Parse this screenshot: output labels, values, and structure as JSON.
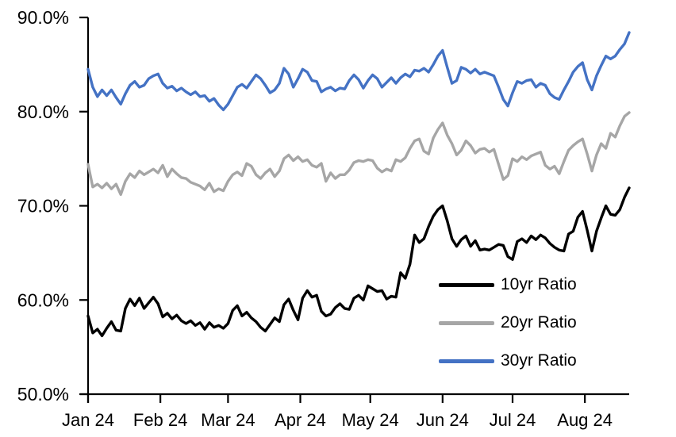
{
  "chart_data": {
    "type": "line",
    "grid": "off",
    "plot_background": "#ffffff",
    "x_axis": {
      "tick_labels": [
        "Jan 24",
        "Feb 24",
        "Mar 24",
        "Apr 24",
        "May 24",
        "Jun 24",
        "Jul 24",
        "Aug 24"
      ],
      "tick_days": [
        0,
        31,
        60,
        91,
        121,
        152,
        182,
        213
      ],
      "domain_days": [
        0,
        232
      ],
      "axis_color": "#000000"
    },
    "y_axis": {
      "tick_labels": [
        "90.0%",
        "80.0%",
        "70.0%",
        "60.0%",
        "50.0%"
      ],
      "tick_values": [
        90,
        80,
        70,
        60,
        50
      ],
      "min": 50,
      "max": 90,
      "axis_color": "#000000"
    },
    "legend": {
      "position": "inside-lower-right"
    },
    "sample_step_days": 2,
    "series": [
      {
        "name": "10yr Ratio",
        "color": "#000000",
        "values": [
          58.3,
          56.5,
          56.9,
          56.2,
          57.0,
          57.7,
          56.8,
          56.7,
          59.1,
          60.1,
          59.4,
          60.2,
          59.1,
          59.7,
          60.3,
          59.6,
          58.2,
          58.6,
          58.0,
          58.4,
          57.8,
          57.5,
          57.8,
          57.3,
          57.6,
          56.9,
          57.6,
          57.1,
          57.3,
          57.0,
          57.5,
          58.9,
          59.4,
          58.3,
          58.7,
          58.1,
          57.7,
          57.1,
          56.7,
          57.4,
          58.1,
          57.7,
          59.5,
          60.1,
          58.9,
          57.9,
          60.2,
          61.0,
          60.3,
          60.5,
          58.8,
          58.3,
          58.5,
          59.2,
          59.6,
          59.1,
          59.0,
          60.2,
          60.5,
          60.0,
          61.5,
          61.2,
          60.9,
          61.0,
          60.1,
          60.4,
          60.3,
          62.9,
          62.3,
          63.8,
          66.9,
          66.1,
          66.5,
          67.8,
          68.9,
          69.6,
          70.0,
          68.4,
          66.5,
          65.7,
          66.4,
          66.8,
          65.7,
          66.3,
          65.3,
          65.4,
          65.3,
          65.6,
          65.9,
          65.8,
          64.6,
          64.3,
          66.2,
          66.5,
          66.1,
          66.8,
          66.4,
          66.9,
          66.6,
          66.0,
          65.6,
          65.3,
          65.2,
          67.0,
          67.3,
          68.8,
          69.4,
          67.4,
          65.2,
          67.3,
          68.7,
          70.0,
          69.1,
          69.0,
          69.6,
          70.9,
          71.9
        ]
      },
      {
        "name": "20yr Ratio",
        "color": "#A6A6A6",
        "values": [
          74.4,
          72.0,
          72.3,
          71.9,
          72.4,
          71.8,
          72.3,
          71.2,
          72.6,
          73.4,
          73.0,
          73.7,
          73.3,
          73.6,
          73.9,
          73.5,
          74.3,
          73.1,
          73.9,
          73.4,
          73.0,
          72.9,
          72.5,
          72.3,
          72.1,
          71.7,
          72.4,
          71.5,
          71.8,
          71.6,
          72.6,
          73.3,
          73.6,
          73.2,
          74.5,
          74.2,
          73.3,
          72.9,
          73.5,
          73.9,
          73.1,
          73.7,
          75.0,
          75.4,
          74.8,
          75.2,
          74.7,
          74.9,
          74.3,
          74.1,
          74.5,
          72.6,
          73.5,
          72.9,
          73.3,
          73.3,
          73.8,
          74.6,
          74.8,
          74.7,
          74.9,
          74.8,
          74.0,
          73.6,
          73.9,
          73.7,
          74.9,
          74.7,
          75.1,
          76.1,
          76.9,
          77.1,
          75.8,
          75.5,
          77.2,
          78.1,
          78.8,
          77.5,
          76.6,
          75.4,
          75.9,
          76.9,
          76.4,
          75.6,
          76.0,
          76.1,
          75.7,
          76.0,
          74.4,
          72.8,
          73.2,
          75.0,
          74.7,
          75.2,
          74.9,
          75.3,
          75.5,
          75.7,
          74.3,
          73.9,
          74.2,
          73.4,
          74.7,
          75.9,
          76.4,
          76.8,
          77.1,
          75.5,
          73.7,
          75.4,
          76.6,
          76.1,
          77.7,
          77.3,
          78.5,
          79.5,
          79.9
        ]
      },
      {
        "name": "30yr Ratio",
        "color": "#4472C4",
        "values": [
          84.5,
          82.6,
          81.6,
          82.3,
          81.7,
          82.3,
          81.5,
          80.8,
          81.9,
          82.8,
          83.2,
          82.6,
          82.8,
          83.5,
          83.8,
          84.0,
          83.0,
          82.5,
          82.7,
          82.2,
          82.5,
          82.1,
          81.8,
          82.1,
          81.6,
          81.7,
          81.1,
          81.4,
          80.7,
          80.2,
          80.8,
          81.7,
          82.6,
          82.9,
          82.5,
          83.2,
          83.9,
          83.5,
          82.8,
          82.0,
          82.3,
          83.0,
          84.6,
          84.0,
          82.6,
          83.5,
          84.5,
          84.2,
          83.3,
          83.2,
          82.1,
          82.4,
          82.6,
          82.2,
          82.5,
          82.4,
          83.3,
          83.9,
          83.4,
          82.5,
          83.3,
          83.9,
          83.5,
          82.6,
          83.1,
          83.6,
          83.0,
          83.6,
          84.0,
          83.7,
          84.4,
          84.3,
          84.6,
          84.2,
          85.0,
          85.9,
          86.5,
          84.7,
          83.0,
          83.3,
          84.7,
          84.5,
          84.1,
          84.5,
          84.0,
          84.2,
          84.0,
          83.8,
          82.6,
          81.3,
          80.6,
          82.0,
          83.2,
          83.0,
          83.3,
          83.4,
          82.6,
          83.0,
          82.8,
          81.9,
          81.5,
          81.3,
          82.3,
          83.2,
          84.2,
          84.8,
          85.2,
          83.4,
          82.3,
          83.8,
          84.9,
          85.9,
          85.6,
          85.9,
          86.6,
          87.2,
          88.4
        ]
      }
    ]
  }
}
